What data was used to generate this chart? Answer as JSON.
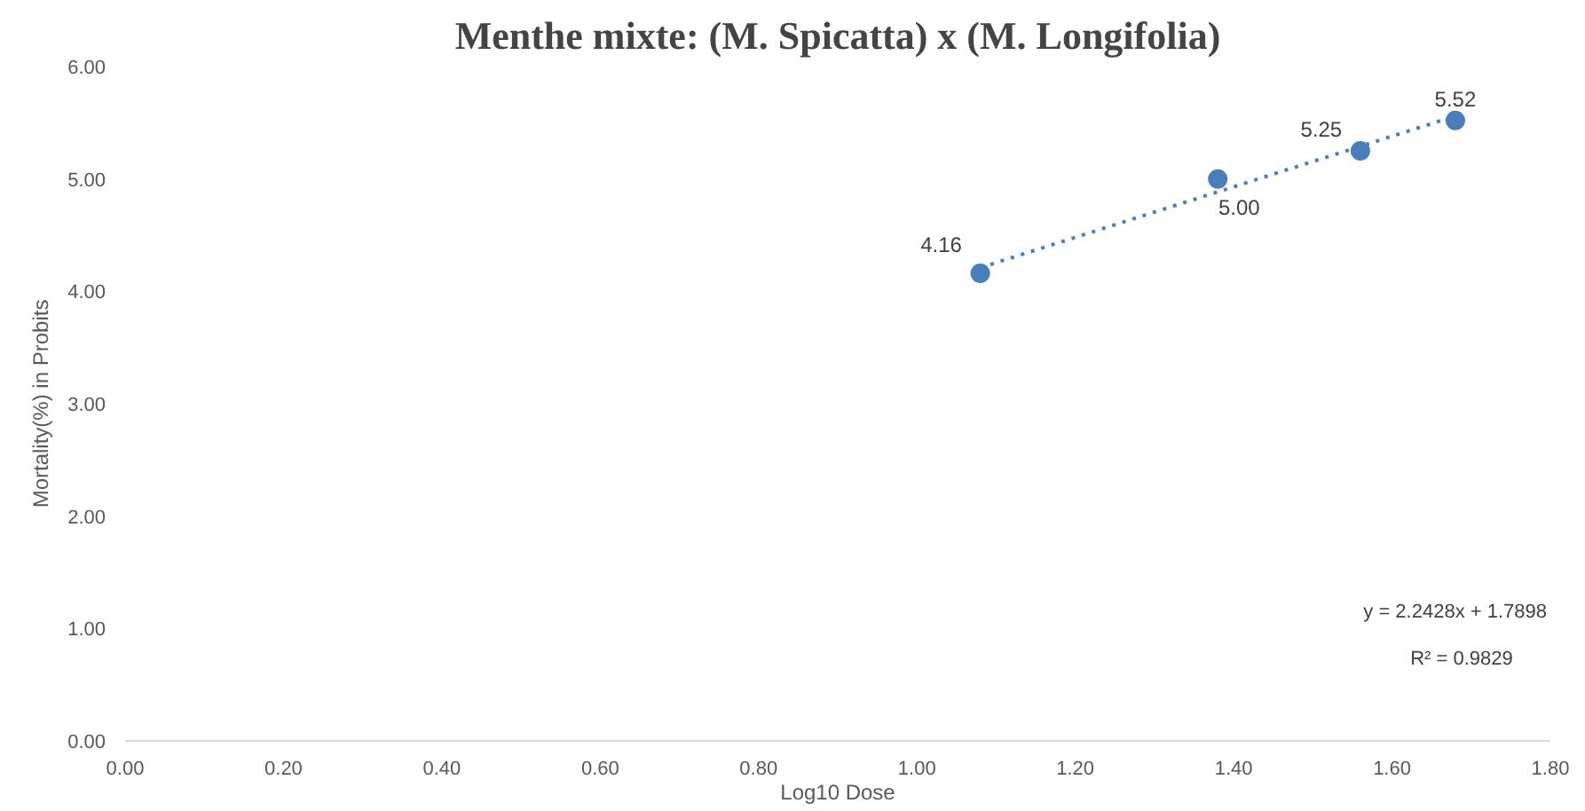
{
  "chart_data": {
    "type": "scatter",
    "title": "Menthe mixte: (M. Spicatta) x (M. Longifolia)",
    "xlabel": "Log10 Dose",
    "ylabel": "Mortality(%) in Probits",
    "x": [
      1.08,
      1.38,
      1.56,
      1.68
    ],
    "series": [
      {
        "color": "#4a7ebb",
        "values": [
          4.16,
          5.0,
          5.25,
          5.52
        ],
        "value_labels": [
          "4.16",
          "5.00",
          "5.25",
          "5.52"
        ],
        "marker": "circle"
      },
      {
        "type": "line",
        "color": "#4a7ebb",
        "x": [
          1.08,
          1.68
        ],
        "values": [
          4.21,
          5.56
        ],
        "line_style": "dotted",
        "marker": "none"
      }
    ],
    "annotations": [
      "y = 2.2428x + 1.7898",
      "R² = 0.9829"
    ],
    "xlim": [
      0,
      1.8
    ],
    "xticks": [
      {
        "value": 0,
        "label": "0.00"
      },
      {
        "value": 0.2,
        "label": "0.20"
      },
      {
        "value": 0.4,
        "label": "0.40"
      },
      {
        "value": 0.6,
        "label": "0.60"
      },
      {
        "value": 0.8,
        "label": "0.80"
      },
      {
        "value": 1.0,
        "label": "1.00"
      },
      {
        "value": 1.2,
        "label": "1.20"
      },
      {
        "value": 1.4,
        "label": "1.40"
      },
      {
        "value": 1.6,
        "label": "1.60"
      },
      {
        "value": 1.8,
        "label": "1.80"
      }
    ],
    "ylim": [
      0,
      6
    ],
    "yticks": [
      {
        "value": 0,
        "label": "0.00"
      },
      {
        "value": 1,
        "label": "1.00"
      },
      {
        "value": 2,
        "label": "2.00"
      },
      {
        "value": 3,
        "label": "3.00"
      },
      {
        "value": 4,
        "label": "4.00"
      },
      {
        "value": 5,
        "label": "5.00"
      },
      {
        "value": 6,
        "label": "6.00"
      }
    ],
    "grid": false
  }
}
